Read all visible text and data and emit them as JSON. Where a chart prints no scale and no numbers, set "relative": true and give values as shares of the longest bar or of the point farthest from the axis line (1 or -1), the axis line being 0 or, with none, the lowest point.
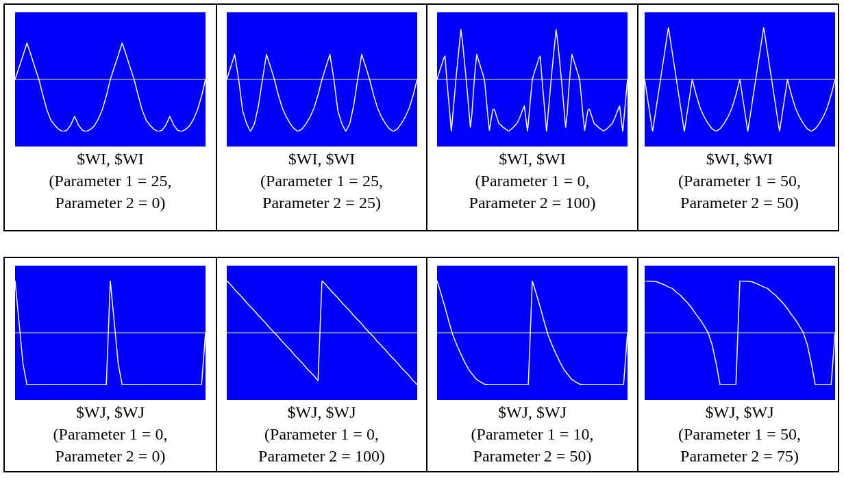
{
  "chart_data": [
    {
      "type": "line",
      "title": "$WI, $WI",
      "subtitle": "(Parameter 1 = 25,\nParameter 2 = 0)",
      "relative": true,
      "categories": [
        null,
        null,
        null,
        null,
        null,
        null,
        null,
        null,
        null,
        null,
        null,
        null,
        null,
        null,
        null,
        null,
        null,
        null,
        null,
        null,
        null,
        null,
        null,
        null,
        null,
        null,
        null,
        null,
        null,
        null,
        null,
        null,
        null,
        null,
        null,
        null,
        null,
        null,
        null,
        null,
        null,
        null,
        null,
        null,
        null,
        null,
        null,
        null,
        null
      ],
      "series": [
        {
          "color": "#ffffff",
          "values": [
            0,
            0.23,
            0.46,
            0.7,
            0.47,
            0.23,
            0,
            -0.3,
            -0.58,
            -0.78,
            -0.88,
            -0.96,
            -1,
            -0.98,
            -0.88,
            -0.71,
            -0.88,
            -0.98,
            -1,
            -0.96,
            -0.89,
            -0.76,
            -0.58,
            -0.32,
            0,
            0.23,
            0.46,
            0.7,
            0.47,
            0.23,
            0,
            -0.3,
            -0.58,
            -0.78,
            -0.88,
            -0.96,
            -1,
            -0.98,
            -0.88,
            -0.71,
            -0.88,
            -0.98,
            -1,
            -0.96,
            -0.89,
            -0.76,
            -0.58,
            -0.32,
            0
          ]
        }
      ]
    },
    {
      "type": "line",
      "title": "$WI, $WI",
      "subtitle": "(Parameter 1 = 25,\nParameter 2 = 25)",
      "relative": true,
      "categories": [
        null,
        null,
        null,
        null,
        null,
        null,
        null,
        null,
        null,
        null,
        null,
        null,
        null,
        null,
        null,
        null,
        null,
        null,
        null,
        null,
        null,
        null,
        null,
        null,
        null,
        null,
        null,
        null,
        null,
        null,
        null,
        null,
        null,
        null,
        null,
        null,
        null,
        null,
        null,
        null,
        null,
        null,
        null,
        null,
        null,
        null,
        null,
        null,
        null
      ],
      "series": [
        {
          "color": "#ffffff",
          "values": [
            0,
            0.24,
            0.48,
            0,
            -0.6,
            -0.85,
            -1,
            -0.85,
            -0.5,
            0,
            0.48,
            0.25,
            0,
            -0.3,
            -0.55,
            -0.72,
            -0.85,
            -0.95,
            -1,
            -0.95,
            -0.85,
            -0.72,
            -0.55,
            -0.3,
            0,
            0.24,
            0.48,
            0,
            -0.6,
            -0.85,
            -1,
            -0.85,
            -0.5,
            0,
            0.48,
            0.25,
            0,
            -0.3,
            -0.55,
            -0.72,
            -0.85,
            -0.95,
            -1,
            -0.95,
            -0.85,
            -0.72,
            -0.55,
            -0.3,
            0
          ]
        }
      ]
    },
    {
      "type": "line",
      "title": "$WI, $WI",
      "subtitle": "(Parameter 1 = 0,\nParameter 2 = 100)",
      "relative": true,
      "categories": [
        null,
        null,
        null,
        null,
        null,
        null,
        null,
        null,
        null,
        null,
        null,
        null,
        null,
        null,
        null,
        null,
        null,
        null,
        null,
        null,
        null,
        null,
        null,
        null,
        null,
        null,
        null,
        null,
        null,
        null,
        null,
        null,
        null,
        null,
        null,
        null,
        null,
        null,
        null,
        null,
        null,
        null,
        null,
        null,
        null,
        null,
        null,
        null,
        null,
        null,
        null,
        null,
        null,
        null,
        null,
        null,
        null,
        null,
        null,
        null,
        null,
        null,
        null,
        null,
        null,
        null,
        null,
        null,
        null,
        null,
        null,
        null,
        null,
        null,
        null,
        null,
        null,
        null,
        null,
        null,
        null,
        null,
        null,
        null,
        null,
        null,
        null,
        null,
        null,
        null,
        null,
        null,
        null,
        null,
        null,
        null,
        null,
        null,
        null,
        null,
        null,
        null,
        null,
        null,
        null,
        null,
        null,
        null,
        null,
        null,
        null,
        null,
        null,
        null,
        null,
        null,
        null,
        null,
        null,
        null,
        null
      ],
      "series": [
        {
          "color": "#ffffff",
          "values": [
            0,
            0.1,
            0.2,
            0.29,
            0.39,
            0.45,
            0.05,
            -0.31,
            -0.65,
            -1,
            -0.65,
            -0.31,
            0.04,
            0.35,
            0.65,
            0.96,
            0.73,
            0.42,
            0.11,
            -0.22,
            -0.57,
            -0.92,
            -0.65,
            -0.19,
            0.18,
            0.48,
            0.38,
            0.28,
            0.18,
            0.09,
            -0.04,
            -0.37,
            -0.71,
            -0.98,
            -0.78,
            -0.59,
            -0.57,
            -0.66,
            -0.76,
            -0.85,
            -0.87,
            -0.9,
            -0.93,
            -0.95,
            -0.97,
            -1,
            -0.97,
            -0.95,
            -0.92,
            -0.89,
            -0.86,
            -0.81,
            -0.74,
            -0.66,
            -0.58,
            -0.51,
            -0.76,
            -1,
            -0.67,
            -0.33,
            0,
            0.1,
            0.2,
            0.29,
            0.39,
            0.45,
            0.05,
            -0.31,
            -0.65,
            -1,
            -0.65,
            -0.31,
            0.04,
            0.35,
            0.65,
            0.96,
            0.73,
            0.42,
            0.11,
            -0.22,
            -0.57,
            -0.92,
            -0.65,
            -0.19,
            0.18,
            0.48,
            0.38,
            0.28,
            0.18,
            0.09,
            -0.04,
            -0.37,
            -0.71,
            -0.98,
            -0.78,
            -0.59,
            -0.57,
            -0.66,
            -0.76,
            -0.85,
            -0.87,
            -0.9,
            -0.93,
            -0.95,
            -0.97,
            -1,
            -0.97,
            -0.95,
            -0.92,
            -0.89,
            -0.86,
            -0.81,
            -0.74,
            -0.66,
            -0.58,
            -0.51,
            -0.76,
            -1,
            -0.67,
            -0.33,
            0
          ]
        }
      ]
    },
    {
      "type": "line",
      "title": "$WI, $WI",
      "subtitle": "(Parameter 1 = 50,\nParameter 2 = 50)",
      "relative": true,
      "categories": [
        null,
        null,
        null,
        null,
        null,
        null,
        null,
        null,
        null,
        null,
        null,
        null,
        null,
        null,
        null,
        null,
        null,
        null,
        null,
        null,
        null,
        null,
        null,
        null,
        null,
        null,
        null,
        null,
        null,
        null,
        null,
        null,
        null,
        null,
        null,
        null,
        null,
        null,
        null,
        null,
        null,
        null,
        null,
        null,
        null,
        null,
        null,
        null,
        null
      ],
      "series": [
        {
          "color": "#ffffff",
          "values": [
            0,
            -0.5,
            -1,
            -0.5,
            0,
            0.5,
            1,
            0.5,
            0,
            -0.5,
            -1,
            -0.5,
            0,
            -0.3,
            -0.55,
            -0.72,
            -0.85,
            -0.95,
            -1,
            -0.95,
            -0.85,
            -0.72,
            -0.55,
            -0.3,
            0,
            -0.5,
            -1,
            -0.5,
            0,
            0.5,
            1,
            0.5,
            0,
            -0.5,
            -1,
            -0.5,
            0,
            -0.3,
            -0.55,
            -0.72,
            -0.85,
            -0.95,
            -1,
            -0.95,
            -0.85,
            -0.72,
            -0.55,
            -0.3,
            0
          ]
        }
      ]
    },
    {
      "type": "line",
      "title": "$WJ, $WJ",
      "subtitle": "(Parameter 1 = 0,\nParameter 2 = 0)",
      "relative": true,
      "categories": [
        null,
        null,
        null,
        null,
        null,
        null,
        null,
        null,
        null,
        null,
        null,
        null,
        null,
        null,
        null,
        null,
        null,
        null,
        null,
        null,
        null,
        null,
        null,
        null,
        null,
        null,
        null,
        null,
        null,
        null,
        null,
        null,
        null,
        null,
        null,
        null,
        null,
        null,
        null,
        null,
        null,
        null,
        null,
        null,
        null,
        null,
        null,
        null,
        null
      ],
      "series": [
        {
          "color": "#ffffff",
          "values": [
            1,
            0.2,
            -0.6,
            -1,
            -1,
            -1,
            -1,
            -1,
            -1,
            -1,
            -1,
            -1,
            -1,
            -1,
            -1,
            -1,
            -1,
            -1,
            -1,
            -1,
            -1,
            -1,
            -1,
            -1,
            1,
            0.2,
            -0.6,
            -1,
            -1,
            -1,
            -1,
            -1,
            -1,
            -1,
            -1,
            -1,
            -1,
            -1,
            -1,
            -1,
            -1,
            -1,
            -1,
            -1,
            -1,
            -1,
            -1,
            -1,
            0
          ]
        }
      ]
    },
    {
      "type": "line",
      "title": "$WJ, $WJ",
      "subtitle": "(Parameter 1 = 0,\nParameter 2 = 100)",
      "relative": true,
      "categories": [
        null,
        null,
        null,
        null,
        null,
        null,
        null,
        null,
        null,
        null,
        null,
        null,
        null,
        null,
        null,
        null,
        null,
        null,
        null,
        null,
        null,
        null,
        null,
        null,
        null,
        null,
        null,
        null,
        null,
        null,
        null,
        null,
        null,
        null,
        null,
        null,
        null,
        null,
        null,
        null,
        null,
        null,
        null,
        null,
        null,
        null,
        null,
        null,
        null
      ],
      "series": [
        {
          "color": "#ffffff",
          "values": [
            1,
            0.92,
            0.83,
            0.75,
            0.67,
            0.58,
            0.5,
            0.42,
            0.33,
            0.25,
            0.17,
            0.08,
            0,
            -0.08,
            -0.17,
            -0.25,
            -0.33,
            -0.42,
            -0.5,
            -0.58,
            -0.67,
            -0.75,
            -0.83,
            -0.92,
            1,
            0.92,
            0.83,
            0.75,
            0.67,
            0.58,
            0.5,
            0.42,
            0.33,
            0.25,
            0.17,
            0.08,
            0,
            -0.08,
            -0.17,
            -0.25,
            -0.33,
            -0.42,
            -0.5,
            -0.58,
            -0.67,
            -0.75,
            -0.83,
            -0.92,
            -1
          ]
        }
      ]
    },
    {
      "type": "line",
      "title": "$WJ, $WJ",
      "subtitle": "(Parameter 1 = 10,\nParameter 2 = 50)",
      "relative": true,
      "categories": [
        null,
        null,
        null,
        null,
        null,
        null,
        null,
        null,
        null,
        null,
        null,
        null,
        null,
        null,
        null,
        null,
        null,
        null,
        null,
        null,
        null,
        null,
        null,
        null,
        null,
        null,
        null,
        null,
        null,
        null,
        null,
        null,
        null,
        null,
        null,
        null,
        null,
        null,
        null,
        null,
        null,
        null,
        null,
        null,
        null,
        null,
        null,
        null,
        null
      ],
      "series": [
        {
          "color": "#ffffff",
          "values": [
            1,
            0.75,
            0.49,
            0.21,
            -0.05,
            -0.24,
            -0.41,
            -0.57,
            -0.71,
            -0.81,
            -0.9,
            -0.95,
            -0.99,
            -1,
            -1,
            -1,
            -1,
            -1,
            -1,
            -1,
            -1,
            -1,
            -1,
            -1,
            1,
            0.75,
            0.49,
            0.21,
            -0.05,
            -0.24,
            -0.41,
            -0.57,
            -0.71,
            -0.81,
            -0.9,
            -0.95,
            -0.99,
            -1,
            -1,
            -1,
            -1,
            -1,
            -1,
            -1,
            -1,
            -1,
            -1,
            -1,
            0
          ]
        }
      ]
    },
    {
      "type": "line",
      "title": "$WJ, $WJ",
      "subtitle": "(Parameter 1 = 50,\nParameter 2 = 75)",
      "relative": true,
      "categories": [
        null,
        null,
        null,
        null,
        null,
        null,
        null,
        null,
        null,
        null,
        null,
        null,
        null,
        null,
        null,
        null,
        null,
        null,
        null,
        null,
        null,
        null,
        null,
        null,
        null,
        null,
        null,
        null,
        null,
        null,
        null,
        null,
        null,
        null,
        null,
        null,
        null,
        null,
        null,
        null,
        null,
        null,
        null,
        null,
        null,
        null,
        null,
        null,
        null
      ],
      "series": [
        {
          "color": "#ffffff",
          "values": [
            1,
            0.99,
            0.99,
            0.98,
            0.95,
            0.92,
            0.88,
            0.85,
            0.78,
            0.72,
            0.64,
            0.56,
            0.46,
            0.35,
            0.25,
            0.13,
            0,
            -0.23,
            -0.58,
            -1,
            -1,
            -1,
            -1,
            -1,
            1,
            0.99,
            0.99,
            0.98,
            0.95,
            0.92,
            0.88,
            0.85,
            0.78,
            0.72,
            0.64,
            0.56,
            0.46,
            0.35,
            0.25,
            0.13,
            0,
            -0.23,
            -0.58,
            -1,
            -1,
            -1,
            -1,
            -1,
            0
          ]
        }
      ]
    }
  ]
}
